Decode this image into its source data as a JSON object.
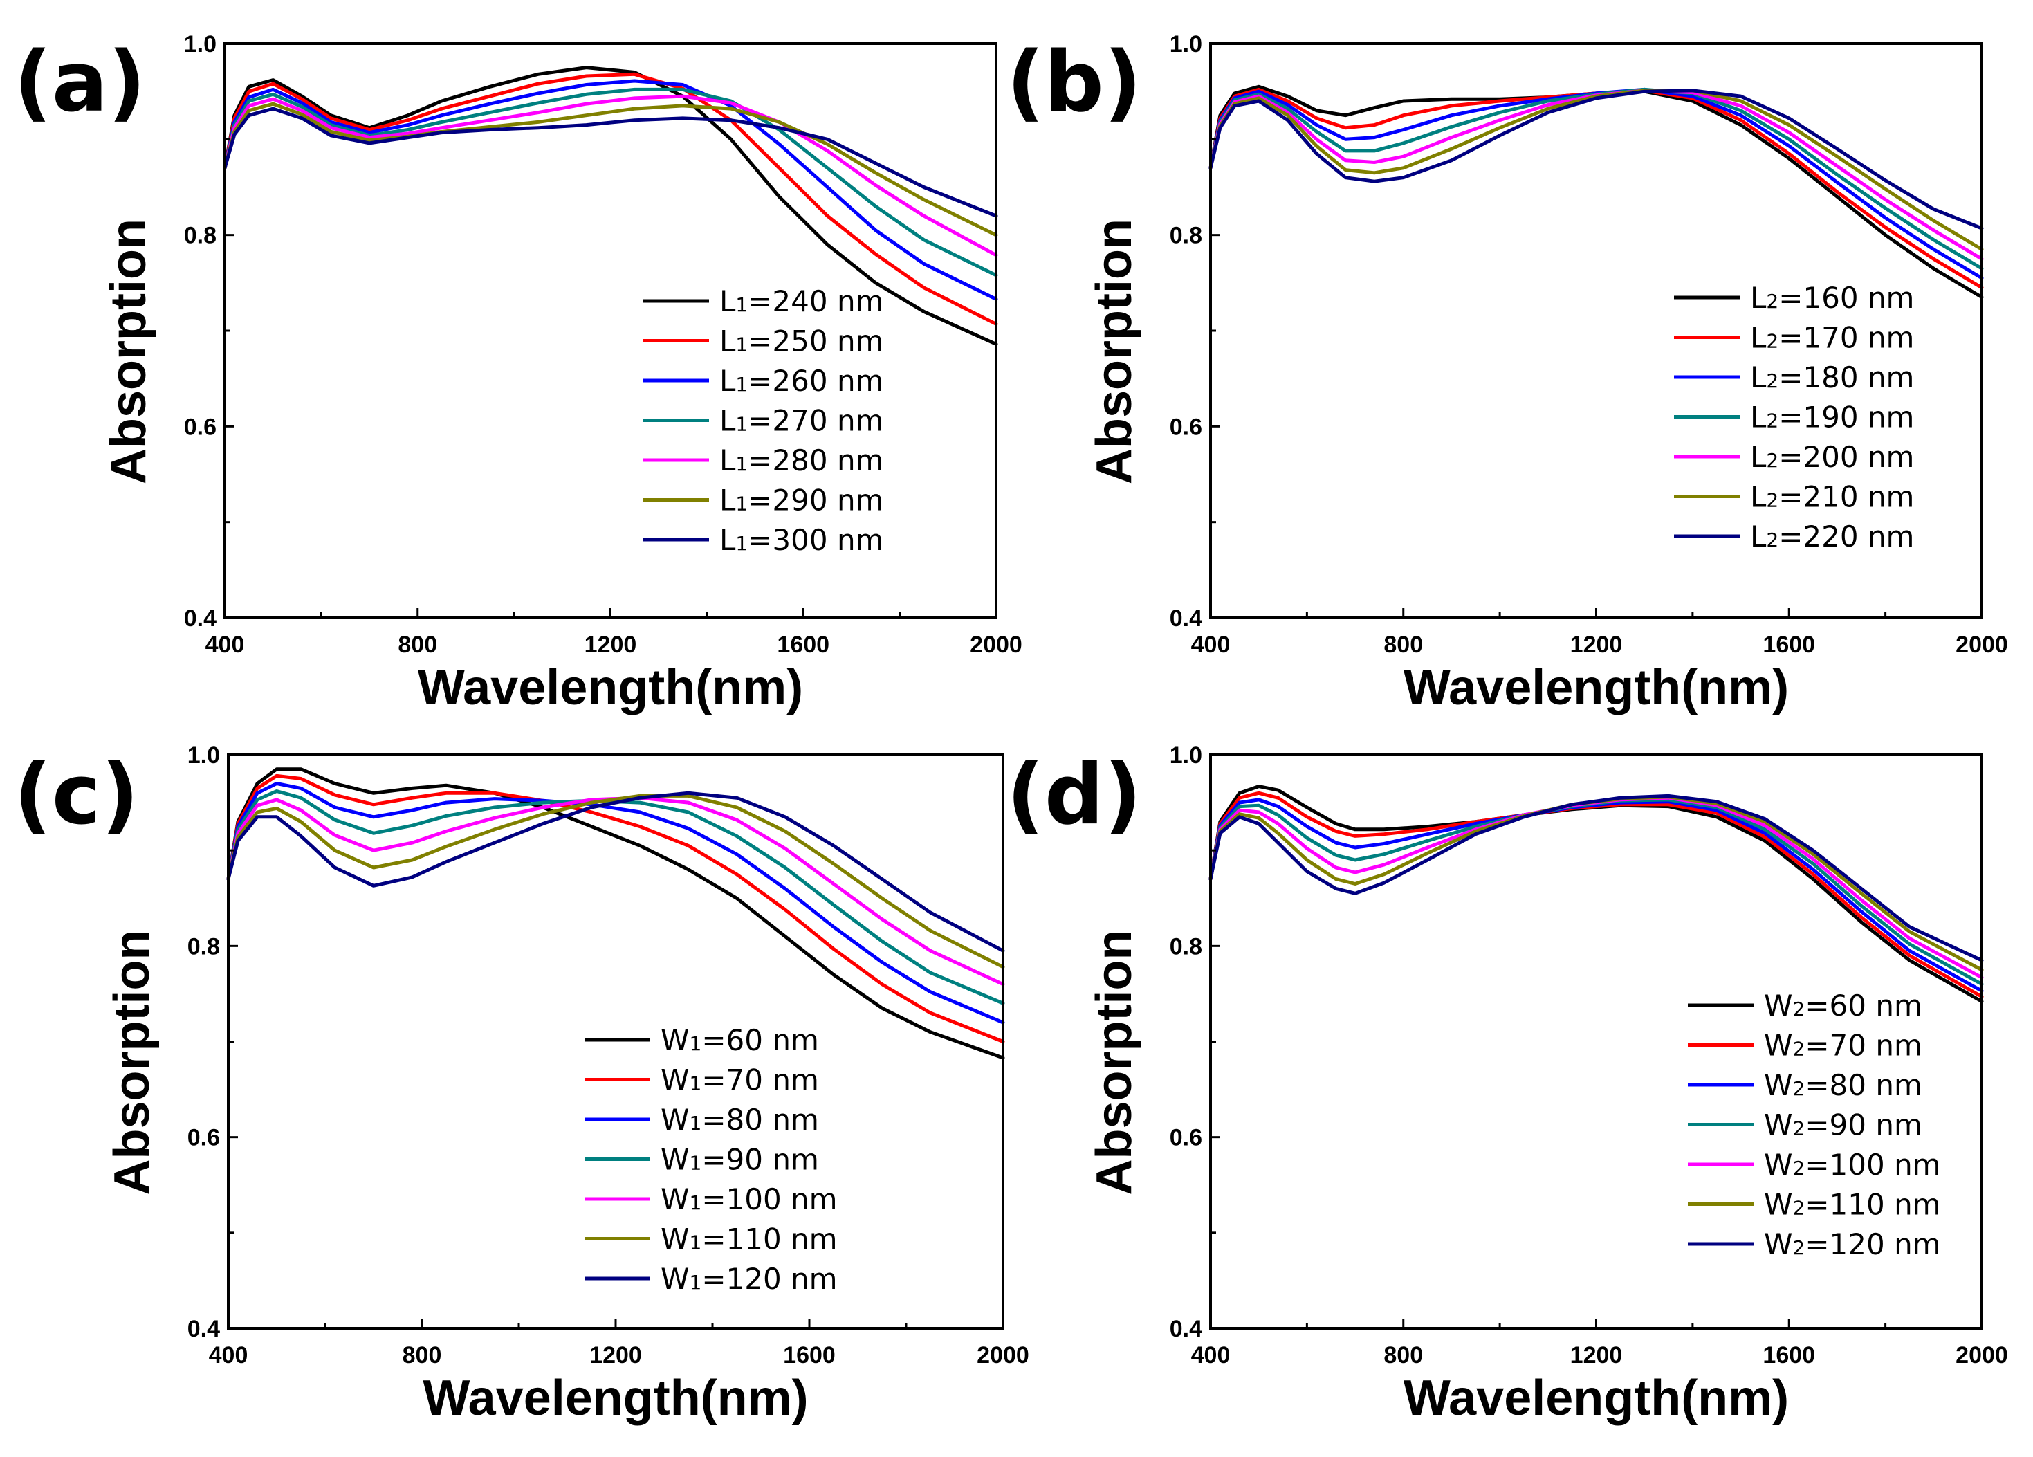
{
  "chart_data": [
    {
      "panel_label": "(a)",
      "type": "line",
      "xlabel": "Wavelength(nm)",
      "ylabel": "Absorption",
      "xlim": [
        400,
        2000
      ],
      "ylim": [
        0.4,
        1.0
      ],
      "xticks": [
        400,
        800,
        1200,
        1600,
        2000
      ],
      "yticks": [
        0.4,
        0.6,
        0.8,
        1.0
      ],
      "x": [
        400,
        420,
        450,
        500,
        560,
        620,
        700,
        780,
        850,
        950,
        1050,
        1150,
        1250,
        1350,
        1450,
        1550,
        1650,
        1750,
        1850,
        2000
      ],
      "legend_position": "center-right",
      "series": [
        {
          "name": "L",
          "subscript": "1",
          "suffix": "=240 nm",
          "color": "#000000",
          "values": [
            0.87,
            0.925,
            0.955,
            0.962,
            0.945,
            0.925,
            0.912,
            0.925,
            0.94,
            0.955,
            0.968,
            0.975,
            0.97,
            0.945,
            0.9,
            0.84,
            0.79,
            0.75,
            0.72,
            0.686
          ]
        },
        {
          "name": "L",
          "subscript": "1",
          "suffix": "=250 nm",
          "color": "#ff0000",
          "values": [
            0.87,
            0.922,
            0.95,
            0.958,
            0.942,
            0.922,
            0.91,
            0.92,
            0.932,
            0.945,
            0.958,
            0.966,
            0.968,
            0.953,
            0.92,
            0.87,
            0.82,
            0.78,
            0.745,
            0.707
          ]
        },
        {
          "name": "L",
          "subscript": "1",
          "suffix": "=260 nm",
          "color": "#0000ff",
          "values": [
            0.87,
            0.918,
            0.944,
            0.952,
            0.938,
            0.918,
            0.907,
            0.915,
            0.925,
            0.937,
            0.948,
            0.957,
            0.961,
            0.957,
            0.935,
            0.895,
            0.85,
            0.805,
            0.77,
            0.733
          ]
        },
        {
          "name": "L",
          "subscript": "1",
          "suffix": "=270 nm",
          "color": "#008080",
          "values": [
            0.87,
            0.915,
            0.94,
            0.947,
            0.934,
            0.915,
            0.904,
            0.91,
            0.918,
            0.928,
            0.938,
            0.947,
            0.952,
            0.952,
            0.94,
            0.91,
            0.87,
            0.83,
            0.795,
            0.758
          ]
        },
        {
          "name": "L",
          "subscript": "1",
          "suffix": "=280 nm",
          "color": "#ff00ff",
          "values": [
            0.87,
            0.912,
            0.935,
            0.942,
            0.93,
            0.912,
            0.902,
            0.906,
            0.912,
            0.92,
            0.928,
            0.937,
            0.943,
            0.945,
            0.938,
            0.918,
            0.888,
            0.852,
            0.82,
            0.779
          ]
        },
        {
          "name": "L",
          "subscript": "1",
          "suffix": "=290 nm",
          "color": "#808000",
          "values": [
            0.87,
            0.908,
            0.93,
            0.937,
            0.926,
            0.908,
            0.899,
            0.903,
            0.908,
            0.913,
            0.918,
            0.925,
            0.932,
            0.935,
            0.932,
            0.918,
            0.895,
            0.865,
            0.837,
            0.8
          ]
        },
        {
          "name": "L",
          "subscript": "1",
          "suffix": "=300 nm",
          "color": "#000080",
          "values": [
            0.87,
            0.905,
            0.925,
            0.932,
            0.922,
            0.904,
            0.896,
            0.902,
            0.907,
            0.91,
            0.912,
            0.915,
            0.92,
            0.922,
            0.92,
            0.912,
            0.9,
            0.875,
            0.85,
            0.82
          ]
        }
      ]
    },
    {
      "panel_label": "(b)",
      "type": "line",
      "xlabel": "Wavelength(nm)",
      "ylabel": "Absorption",
      "xlim": [
        400,
        2000
      ],
      "ylim": [
        0.4,
        1.0
      ],
      "xticks": [
        400,
        800,
        1200,
        1600,
        2000
      ],
      "yticks": [
        0.4,
        0.6,
        0.8,
        1.0
      ],
      "x": [
        400,
        420,
        450,
        500,
        560,
        620,
        680,
        740,
        800,
        900,
        1000,
        1100,
        1200,
        1300,
        1400,
        1500,
        1600,
        1700,
        1800,
        1900,
        2000
      ],
      "legend_position": "center-right",
      "series": [
        {
          "name": "L",
          "subscript": "2",
          "suffix": "=160 nm",
          "color": "#000000",
          "values": [
            0.87,
            0.925,
            0.948,
            0.955,
            0.945,
            0.93,
            0.925,
            0.933,
            0.94,
            0.942,
            0.942,
            0.944,
            0.948,
            0.95,
            0.94,
            0.915,
            0.88,
            0.84,
            0.8,
            0.765,
            0.735
          ]
        },
        {
          "name": "L",
          "subscript": "2",
          "suffix": "=170 nm",
          "color": "#ff0000",
          "values": [
            0.87,
            0.922,
            0.945,
            0.952,
            0.94,
            0.922,
            0.912,
            0.915,
            0.925,
            0.935,
            0.94,
            0.944,
            0.948,
            0.951,
            0.943,
            0.92,
            0.885,
            0.845,
            0.808,
            0.775,
            0.745
          ]
        },
        {
          "name": "L",
          "subscript": "2",
          "suffix": "=180 nm",
          "color": "#0000ff",
          "values": [
            0.87,
            0.92,
            0.943,
            0.95,
            0.936,
            0.915,
            0.9,
            0.902,
            0.91,
            0.925,
            0.935,
            0.942,
            0.948,
            0.952,
            0.945,
            0.925,
            0.893,
            0.855,
            0.818,
            0.785,
            0.755
          ]
        },
        {
          "name": "L",
          "subscript": "2",
          "suffix": "=190 nm",
          "color": "#008080",
          "values": [
            0.87,
            0.918,
            0.941,
            0.947,
            0.932,
            0.908,
            0.888,
            0.888,
            0.896,
            0.913,
            0.928,
            0.94,
            0.947,
            0.952,
            0.948,
            0.93,
            0.9,
            0.863,
            0.828,
            0.795,
            0.765
          ]
        },
        {
          "name": "L",
          "subscript": "2",
          "suffix": "=200 nm",
          "color": "#ff00ff",
          "values": [
            0.87,
            0.916,
            0.939,
            0.945,
            0.928,
            0.9,
            0.878,
            0.876,
            0.882,
            0.902,
            0.92,
            0.936,
            0.946,
            0.951,
            0.949,
            0.935,
            0.907,
            0.872,
            0.837,
            0.805,
            0.775
          ]
        },
        {
          "name": "L",
          "subscript": "2",
          "suffix": "=210 nm",
          "color": "#808000",
          "values": [
            0.87,
            0.914,
            0.937,
            0.943,
            0.925,
            0.893,
            0.868,
            0.865,
            0.87,
            0.89,
            0.912,
            0.932,
            0.945,
            0.951,
            0.951,
            0.94,
            0.915,
            0.882,
            0.848,
            0.815,
            0.785
          ]
        },
        {
          "name": "L",
          "subscript": "2",
          "suffix": "=220 nm",
          "color": "#000080",
          "values": [
            0.87,
            0.912,
            0.935,
            0.94,
            0.92,
            0.885,
            0.86,
            0.856,
            0.86,
            0.878,
            0.904,
            0.928,
            0.943,
            0.95,
            0.951,
            0.945,
            0.922,
            0.89,
            0.857,
            0.827,
            0.807
          ]
        }
      ]
    },
    {
      "panel_label": "(c)",
      "type": "line",
      "xlabel": "Wavelength(nm)",
      "ylabel": "Absorption",
      "xlim": [
        400,
        2000
      ],
      "ylim": [
        0.4,
        1.0
      ],
      "xticks": [
        400,
        800,
        1200,
        1600,
        2000
      ],
      "yticks": [
        0.4,
        0.6,
        0.8,
        1.0
      ],
      "x": [
        400,
        420,
        460,
        500,
        550,
        620,
        700,
        780,
        850,
        950,
        1050,
        1150,
        1250,
        1350,
        1450,
        1550,
        1650,
        1750,
        1850,
        2000
      ],
      "legend_position": "center-right",
      "series": [
        {
          "name": "W",
          "subscript": "1",
          "suffix": "=60 nm",
          "color": "#000000",
          "values": [
            0.87,
            0.93,
            0.97,
            0.985,
            0.985,
            0.97,
            0.96,
            0.965,
            0.968,
            0.96,
            0.945,
            0.925,
            0.905,
            0.88,
            0.85,
            0.81,
            0.77,
            0.735,
            0.71,
            0.683
          ]
        },
        {
          "name": "W",
          "subscript": "1",
          "suffix": "=70 nm",
          "color": "#ff0000",
          "values": [
            0.87,
            0.928,
            0.965,
            0.978,
            0.975,
            0.958,
            0.948,
            0.955,
            0.96,
            0.96,
            0.952,
            0.94,
            0.925,
            0.905,
            0.875,
            0.838,
            0.797,
            0.76,
            0.73,
            0.7
          ]
        },
        {
          "name": "W",
          "subscript": "1",
          "suffix": "=80 nm",
          "color": "#0000ff",
          "values": [
            0.87,
            0.925,
            0.96,
            0.97,
            0.965,
            0.945,
            0.935,
            0.942,
            0.95,
            0.954,
            0.952,
            0.948,
            0.94,
            0.923,
            0.896,
            0.86,
            0.82,
            0.783,
            0.752,
            0.72
          ]
        },
        {
          "name": "W",
          "subscript": "1",
          "suffix": "=90 nm",
          "color": "#008080",
          "values": [
            0.87,
            0.922,
            0.953,
            0.962,
            0.955,
            0.932,
            0.918,
            0.926,
            0.936,
            0.945,
            0.95,
            0.952,
            0.95,
            0.94,
            0.915,
            0.882,
            0.843,
            0.805,
            0.772,
            0.74
          ]
        },
        {
          "name": "W",
          "subscript": "1",
          "suffix": "=100 nm",
          "color": "#ff00ff",
          "values": [
            0.87,
            0.918,
            0.947,
            0.953,
            0.942,
            0.916,
            0.9,
            0.908,
            0.92,
            0.934,
            0.945,
            0.953,
            0.955,
            0.95,
            0.932,
            0.902,
            0.865,
            0.828,
            0.795,
            0.76
          ]
        },
        {
          "name": "W",
          "subscript": "1",
          "suffix": "=110 nm",
          "color": "#808000",
          "values": [
            0.87,
            0.914,
            0.94,
            0.944,
            0.93,
            0.9,
            0.882,
            0.89,
            0.904,
            0.922,
            0.938,
            0.95,
            0.957,
            0.957,
            0.945,
            0.92,
            0.886,
            0.85,
            0.816,
            0.778
          ]
        },
        {
          "name": "W",
          "subscript": "1",
          "suffix": "=120 nm",
          "color": "#000080",
          "values": [
            0.87,
            0.91,
            0.935,
            0.935,
            0.915,
            0.882,
            0.863,
            0.872,
            0.888,
            0.908,
            0.928,
            0.945,
            0.955,
            0.96,
            0.955,
            0.935,
            0.905,
            0.87,
            0.835,
            0.795
          ]
        }
      ]
    },
    {
      "panel_label": "(d)",
      "type": "line",
      "xlabel": "Wavelength(nm)",
      "ylabel": "Absorption",
      "xlim": [
        400,
        2000
      ],
      "ylim": [
        0.4,
        1.0
      ],
      "xticks": [
        400,
        800,
        1200,
        1600,
        2000
      ],
      "yticks": [
        0.4,
        0.6,
        0.8,
        1.0
      ],
      "x": [
        400,
        420,
        460,
        500,
        540,
        600,
        660,
        700,
        760,
        850,
        950,
        1050,
        1150,
        1250,
        1350,
        1450,
        1550,
        1650,
        1750,
        1850,
        2000
      ],
      "legend_position": "bottom-right",
      "series": [
        {
          "name": "W",
          "subscript": "2",
          "suffix": "=60 nm",
          "color": "#000000",
          "values": [
            0.87,
            0.93,
            0.96,
            0.967,
            0.963,
            0.945,
            0.928,
            0.922,
            0.922,
            0.925,
            0.93,
            0.937,
            0.943,
            0.947,
            0.946,
            0.935,
            0.91,
            0.87,
            0.825,
            0.785,
            0.742
          ]
        },
        {
          "name": "W",
          "subscript": "2",
          "suffix": "=70 nm",
          "color": "#ff0000",
          "values": [
            0.87,
            0.928,
            0.955,
            0.96,
            0.955,
            0.935,
            0.92,
            0.915,
            0.917,
            0.922,
            0.93,
            0.937,
            0.944,
            0.948,
            0.948,
            0.939,
            0.914,
            0.875,
            0.83,
            0.79,
            0.747
          ]
        },
        {
          "name": "W",
          "subscript": "2",
          "suffix": "=80 nm",
          "color": "#0000ff",
          "values": [
            0.87,
            0.926,
            0.95,
            0.953,
            0.946,
            0.925,
            0.908,
            0.903,
            0.907,
            0.917,
            0.928,
            0.937,
            0.945,
            0.95,
            0.951,
            0.942,
            0.918,
            0.88,
            0.836,
            0.795,
            0.753
          ]
        },
        {
          "name": "W",
          "subscript": "2",
          "suffix": "=90 nm",
          "color": "#008080",
          "values": [
            0.87,
            0.924,
            0.946,
            0.947,
            0.937,
            0.913,
            0.895,
            0.89,
            0.896,
            0.91,
            0.925,
            0.937,
            0.946,
            0.952,
            0.953,
            0.945,
            0.922,
            0.886,
            0.842,
            0.802,
            0.76
          ]
        },
        {
          "name": "W",
          "subscript": "2",
          "suffix": "=100 nm",
          "color": "#ff00ff",
          "values": [
            0.87,
            0.922,
            0.942,
            0.94,
            0.928,
            0.902,
            0.882,
            0.877,
            0.885,
            0.903,
            0.922,
            0.937,
            0.947,
            0.953,
            0.955,
            0.947,
            0.926,
            0.891,
            0.848,
            0.808,
            0.767
          ]
        },
        {
          "name": "W",
          "subscript": "2",
          "suffix": "=110 nm",
          "color": "#808000",
          "values": [
            0.87,
            0.92,
            0.938,
            0.934,
            0.918,
            0.89,
            0.87,
            0.865,
            0.875,
            0.897,
            0.92,
            0.936,
            0.948,
            0.954,
            0.956,
            0.949,
            0.93,
            0.896,
            0.855,
            0.815,
            0.775
          ]
        },
        {
          "name": "W",
          "subscript": "2",
          "suffix": "=120 nm",
          "color": "#000080",
          "values": [
            0.87,
            0.918,
            0.935,
            0.928,
            0.908,
            0.878,
            0.86,
            0.855,
            0.866,
            0.89,
            0.917,
            0.935,
            0.948,
            0.955,
            0.957,
            0.951,
            0.933,
            0.9,
            0.86,
            0.82,
            0.785
          ]
        }
      ]
    }
  ]
}
